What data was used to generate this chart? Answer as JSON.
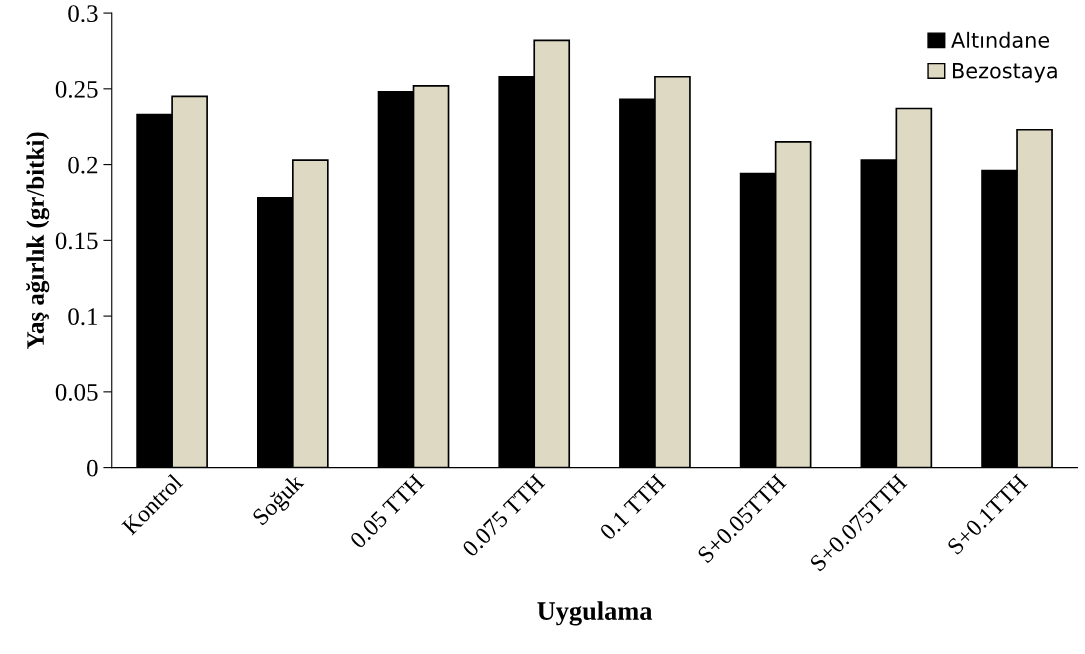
{
  "chart_data": {
    "type": "bar",
    "xlabel": "Uygulama",
    "ylabel": "Yaş ağırlık (gr/bitki)",
    "categories": [
      "Kontrol",
      "Soğuk",
      "0.05 TTH",
      "0.075 TTH",
      "0.1 TTH",
      "S+0.05TTH",
      "S+0.075TTH",
      "S+0.1TTH"
    ],
    "series": [
      {
        "name": "Altındane",
        "color": "#000000",
        "values": [
          0.233,
          0.178,
          0.248,
          0.258,
          0.243,
          0.194,
          0.203,
          0.196
        ]
      },
      {
        "name": "Bezostaya",
        "color": "#ddd9c3",
        "values": [
          0.245,
          0.203,
          0.252,
          0.282,
          0.258,
          0.215,
          0.237,
          0.223
        ]
      }
    ],
    "ylim": [
      0,
      0.3
    ],
    "yticks": [
      0,
      0.05,
      0.1,
      0.15,
      0.2,
      0.25,
      0.3
    ],
    "grid": false,
    "legend": "top right"
  }
}
